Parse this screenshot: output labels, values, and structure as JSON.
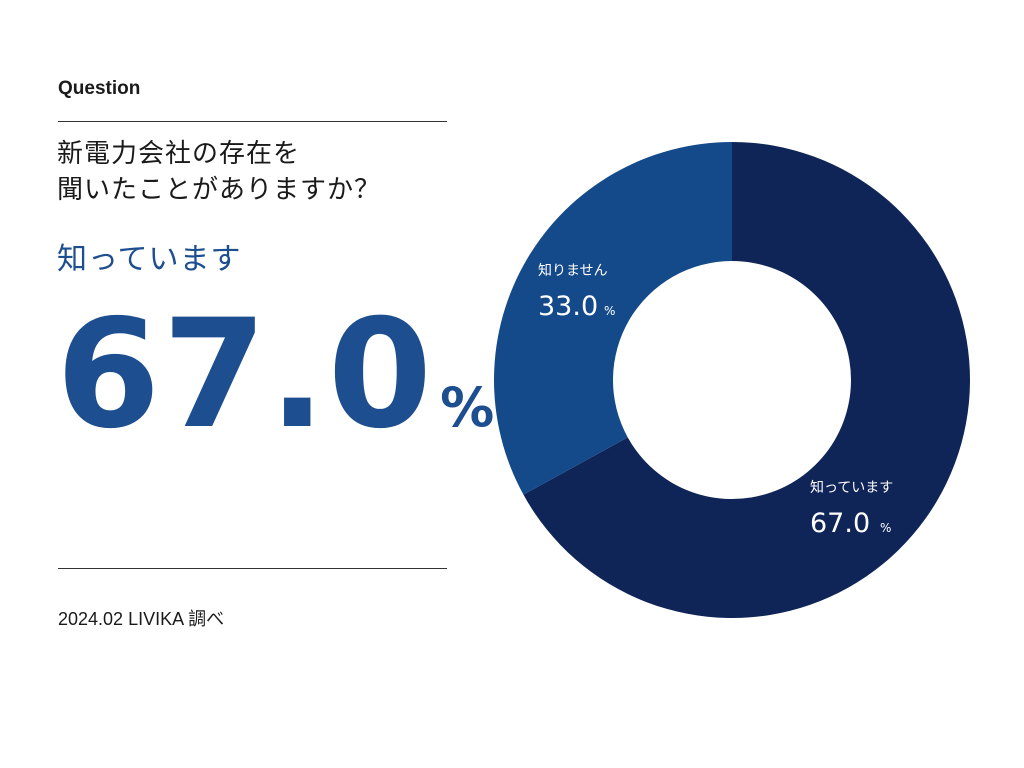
{
  "question_label": "Question",
  "question_lines": [
    "新電力会社の存在を",
    "聞いたことがありますか？"
  ],
  "highlight": {
    "label": "知っています",
    "value": "67.0",
    "unit": "%"
  },
  "source": "2024.02 LIVIKA 調べ",
  "colors": {
    "accent": "#1d4e8f",
    "slice_known": "#0f2557",
    "slice_unknown": "#154a8a"
  },
  "chart_data": {
    "type": "pie",
    "donut": true,
    "unit": "%",
    "slices": [
      {
        "label": "知っています",
        "value": 67.0,
        "display": "67.0",
        "color": "#0f2557"
      },
      {
        "label": "知りません",
        "value": 33.0,
        "display": "33.0",
        "color": "#154a8a"
      }
    ]
  }
}
